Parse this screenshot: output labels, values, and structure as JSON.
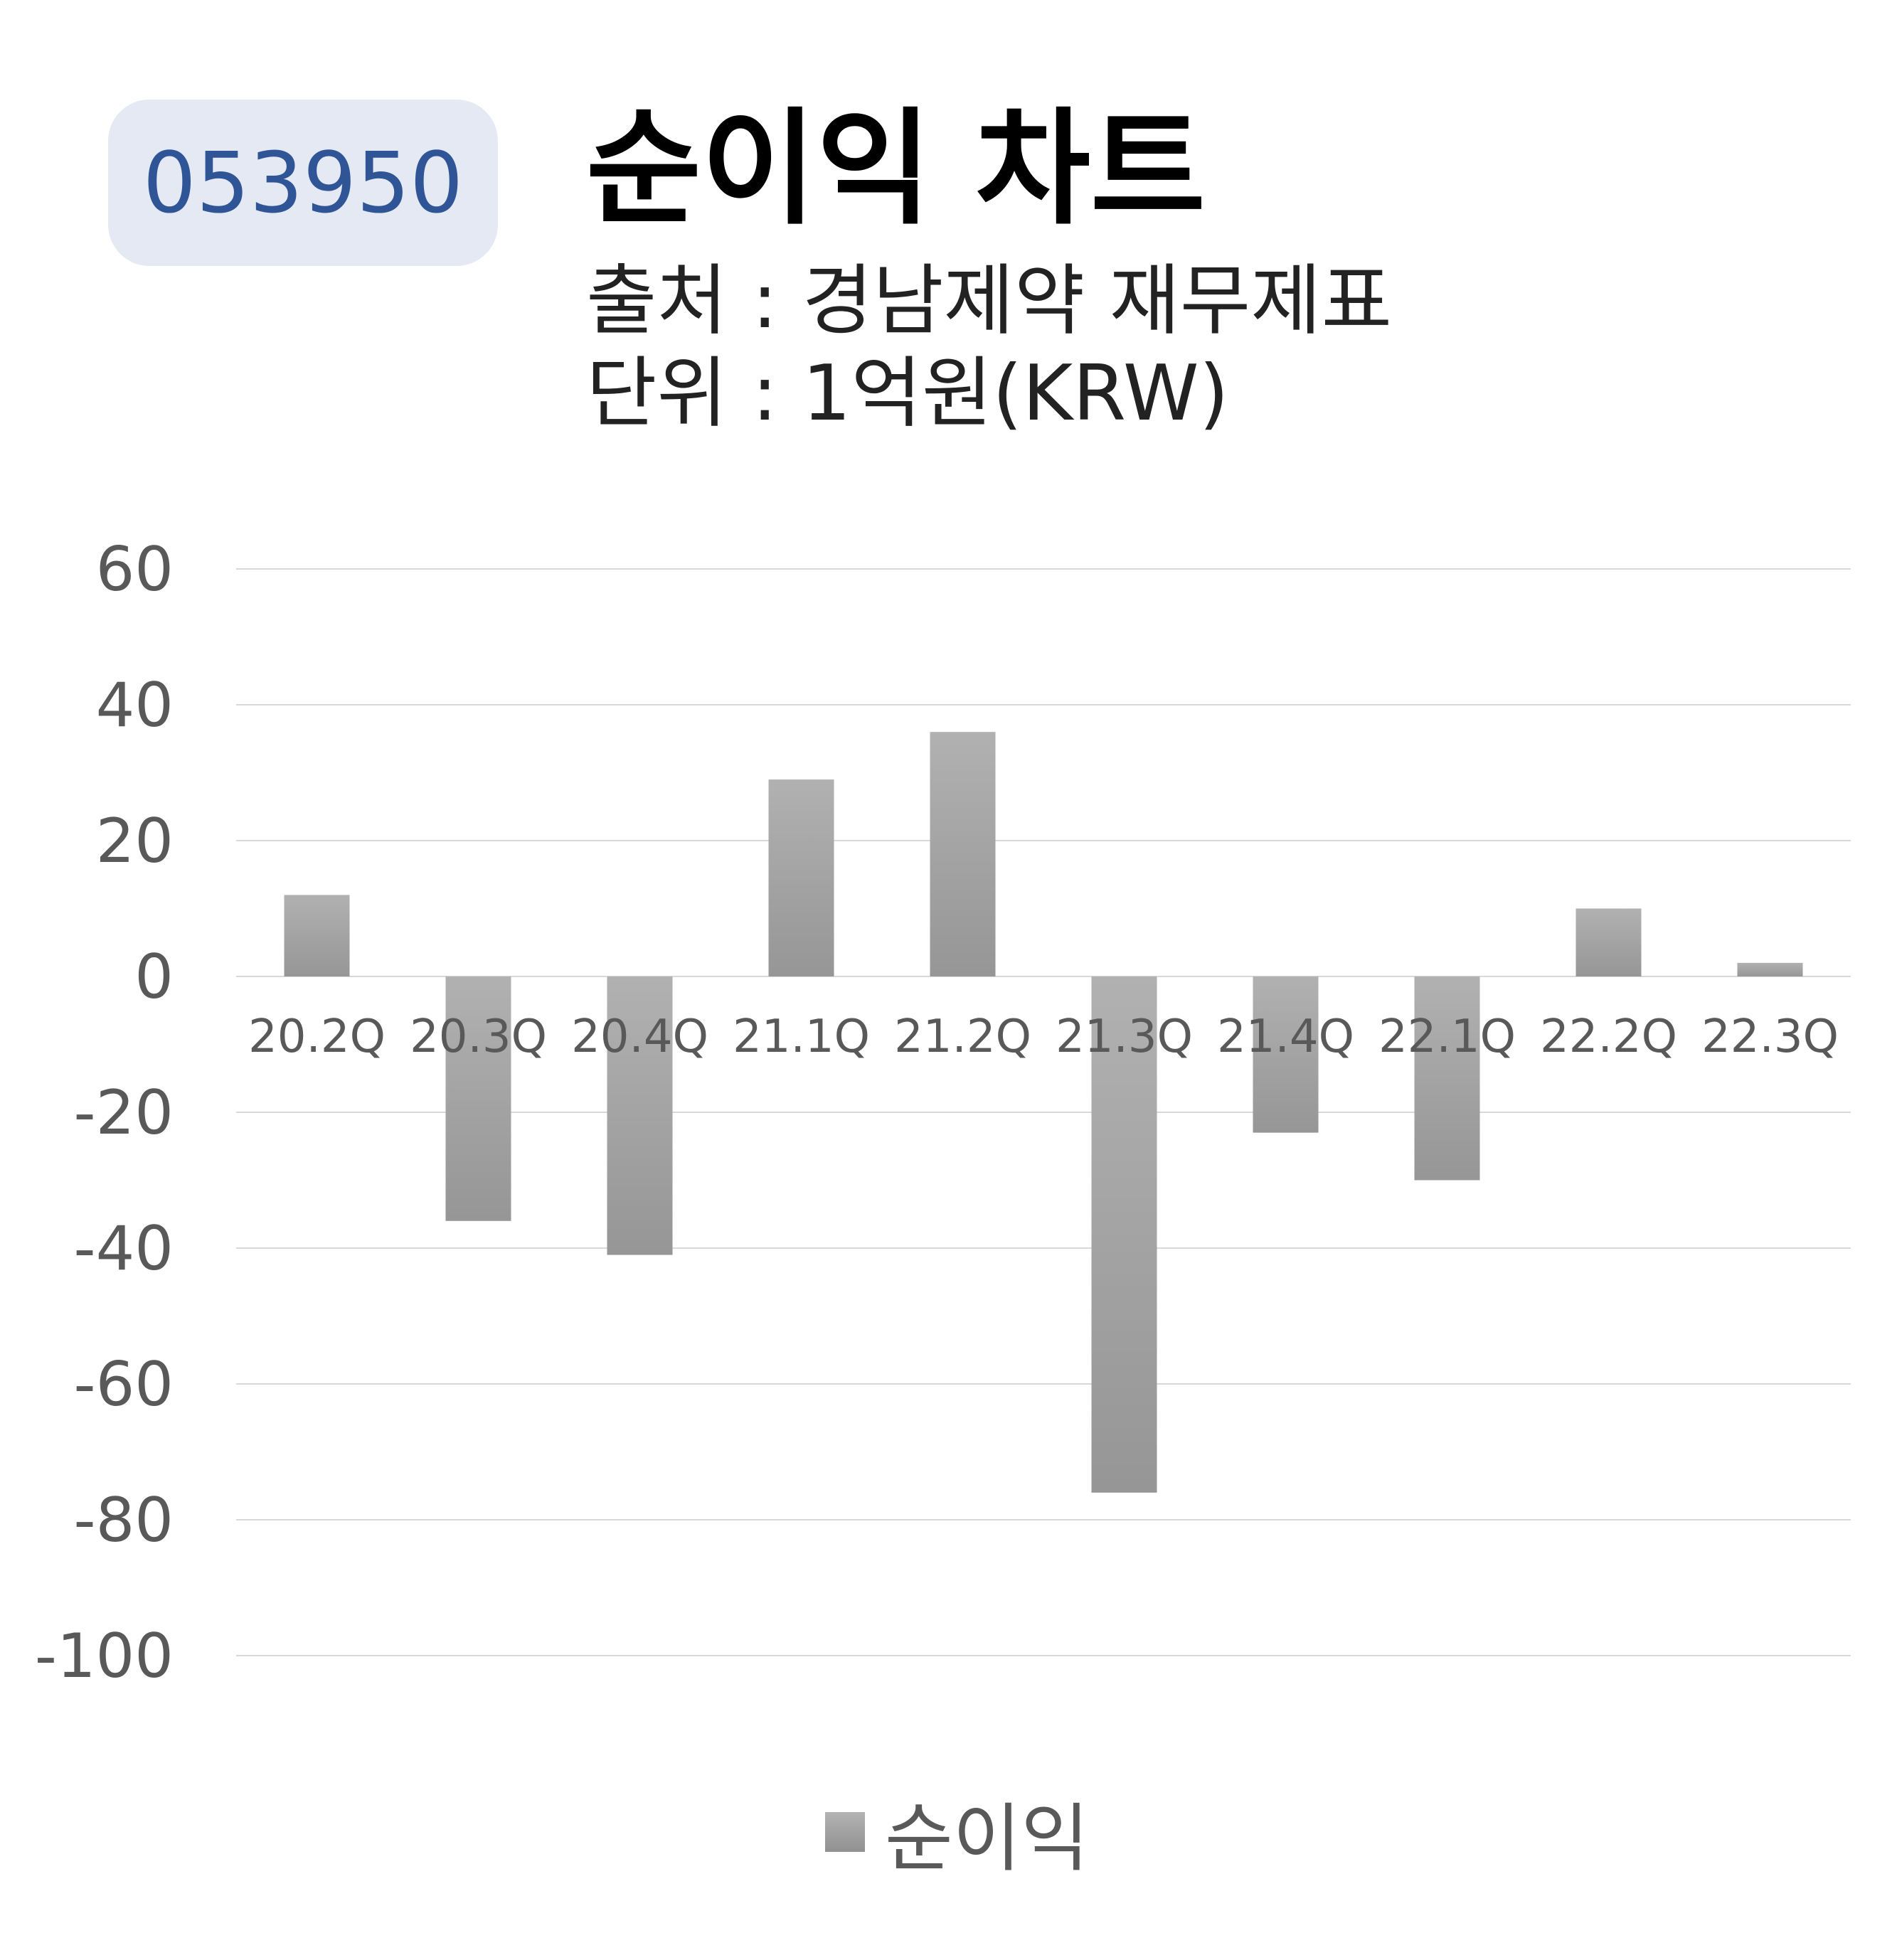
{
  "badge": {
    "code": "053950"
  },
  "header": {
    "title": "순이익 차트",
    "source": "출처 : 경남제약 재무제표",
    "unit": "단위 : 1억원(KRW)"
  },
  "colors": {
    "bar": "#a6a6a6",
    "badge_bg": "#e4e9f4",
    "badge_text": "#2f5597",
    "grid": "#d9d9d9",
    "tick": "#595959"
  },
  "chart_data": {
    "type": "bar",
    "title": "순이익 차트",
    "categories": [
      "20.2Q",
      "20.3Q",
      "20.4Q",
      "21.1Q",
      "21.2Q",
      "21.3Q",
      "21.4Q",
      "22.1Q",
      "22.2Q",
      "22.3Q"
    ],
    "series": [
      {
        "name": "순이익",
        "values": [
          12,
          -36,
          -41,
          29,
          36,
          -76,
          -23,
          -30,
          10,
          2
        ]
      }
    ],
    "yticks": [
      60,
      40,
      20,
      0,
      -20,
      -40,
      -60,
      -80,
      -100
    ],
    "ylim": [
      -100,
      60
    ],
    "grid": true,
    "legend": "bottom-center"
  }
}
